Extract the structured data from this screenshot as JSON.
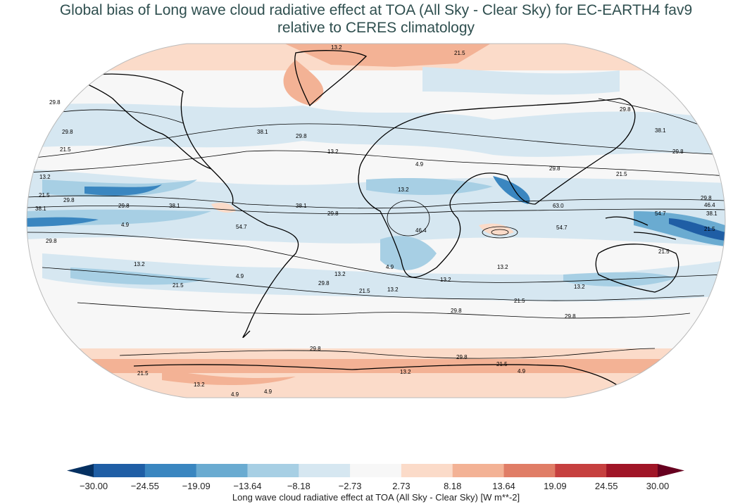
{
  "title": {
    "line1": "Global bias of Long wave cloud radiative effect at TOA (All Sky - Clear Sky) for EC-EARTH4 fav9",
    "line2": "relative to CERES climatology"
  },
  "map": {
    "projection": "Robinson",
    "contour_labels": [
      "4.9",
      "13.2",
      "21.5",
      "29.8",
      "38.1",
      "46.4",
      "54.7",
      "63.0"
    ]
  },
  "colorbar": {
    "label": "Long wave cloud radiative effect at TOA (All Sky - Clear Sky) [W m**-2]",
    "ticks": [
      "−30.00",
      "−24.55",
      "−19.09",
      "−13.64",
      "−8.18",
      "−2.73",
      "2.73",
      "8.18",
      "13.64",
      "19.09",
      "24.55",
      "30.00"
    ],
    "colors": [
      "#1f5ea5",
      "#3a86c0",
      "#6aabd1",
      "#a7cfe4",
      "#d6e7f1",
      "#f7f7f7",
      "#fbdbc9",
      "#f3b295",
      "#e07d66",
      "#c6403f",
      "#a01527"
    ],
    "under_color": "#053061",
    "over_color": "#67001f"
  }
}
